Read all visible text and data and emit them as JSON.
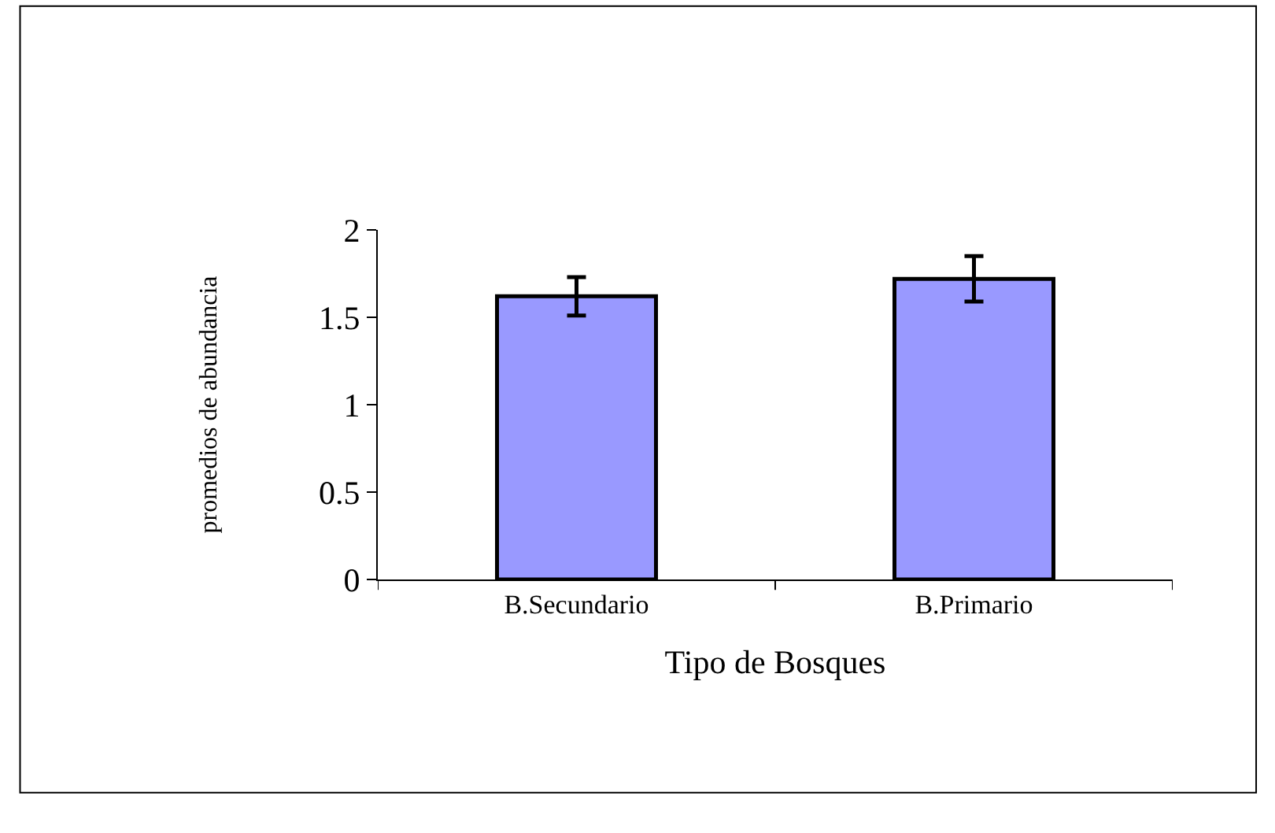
{
  "chart_data": {
    "type": "bar",
    "xlabel": "Tipo de Bosques",
    "ylabel": "promedios de abundancia",
    "categories": [
      "B.Secundario",
      "B.Primario"
    ],
    "values": [
      1.62,
      1.72
    ],
    "errors": [
      0.11,
      0.13
    ],
    "color": "#9999ff",
    "ylim": [
      0,
      2
    ],
    "yticks": [
      0,
      0.5,
      1,
      1.5,
      2
    ]
  }
}
